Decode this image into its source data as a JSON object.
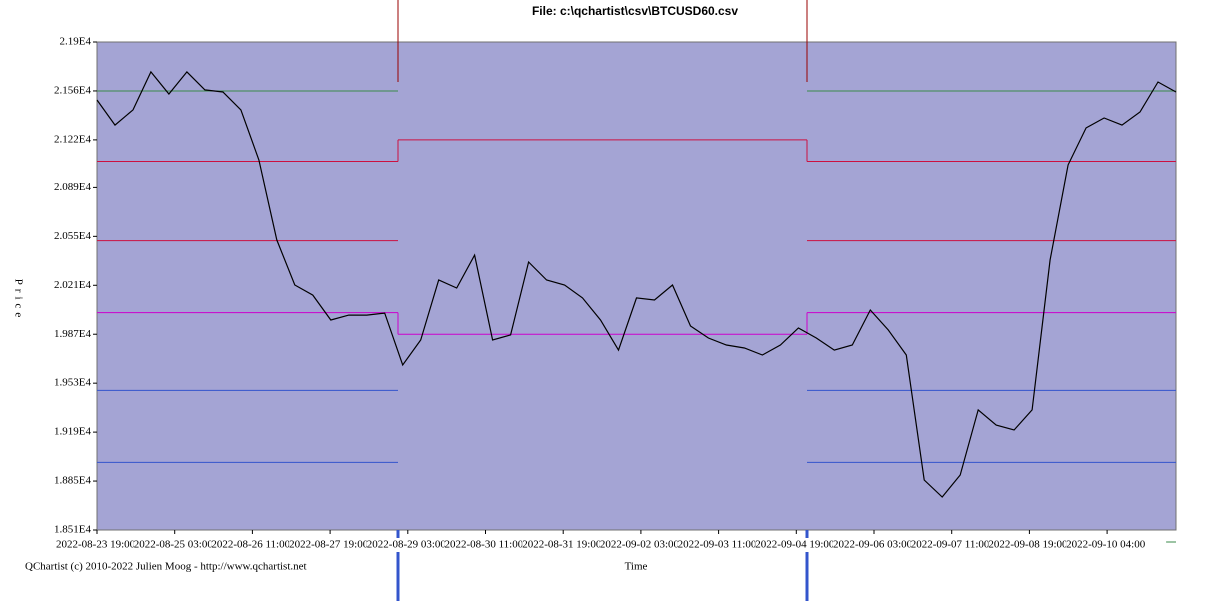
{
  "chart_data": {
    "type": "line",
    "title": "File: c:\\qchartist\\csv\\BTCUSD60.csv",
    "y_label": "Price",
    "x_label": "Time",
    "footer": "QChartist (c) 2010-2022 Julien Moog - http://www.qchartist.net",
    "ylim": [
      18510,
      21900
    ],
    "yticks": [
      {
        "value": 18510,
        "label": "1.851E4"
      },
      {
        "value": 18850,
        "label": "1.885E4"
      },
      {
        "value": 19190,
        "label": "1.919E4"
      },
      {
        "value": 19530,
        "label": "1.953E4"
      },
      {
        "value": 19870,
        "label": "1.987E4"
      },
      {
        "value": 20210,
        "label": "2.021E4"
      },
      {
        "value": 20550,
        "label": "2.055E4"
      },
      {
        "value": 20890,
        "label": "2.089E4"
      },
      {
        "value": 21220,
        "label": "2.122E4"
      },
      {
        "value": 21560,
        "label": "2.156E4"
      },
      {
        "value": 21900,
        "label": "2.19E4"
      }
    ],
    "x_tick_labels": [
      "2022-08-23 19:00",
      "2022-08-25 03:00",
      "2022-08-26 11:00",
      "2022-08-27 19:00",
      "2022-08-29 03:00",
      "2022-08-30 11:00",
      "2022-08-31 19:00",
      "2022-09-02 03:00",
      "2022-09-03 11:00",
      "2022-09-04 19:00",
      "2022-09-06 03:00",
      "2022-09-07 11:00",
      "2022-09-08 19:00",
      "2022-09-10 04:00"
    ],
    "series": [
      {
        "color": "#000000",
        "values": [
          21497,
          21323,
          21428,
          21692,
          21539,
          21692,
          21567,
          21553,
          21428,
          21080,
          20525,
          20212,
          20142,
          19969,
          20003,
          20003,
          20017,
          19656,
          19830,
          20247,
          20191,
          20420,
          19830,
          19865,
          20372,
          20247,
          20212,
          20122,
          19969,
          19760,
          20122,
          20108,
          20212,
          19927,
          19844,
          19795,
          19774,
          19726,
          19795,
          19913,
          19844,
          19760,
          19795,
          20038,
          19899,
          19726,
          18857,
          18739,
          18892,
          19344,
          19239,
          19205,
          19344,
          20386,
          21046,
          21303,
          21372,
          21323,
          21414,
          21622,
          21553
        ]
      }
    ],
    "levels": [
      {
        "color": "#3a8a4a",
        "values": [
          21560,
          null,
          21560
        ]
      },
      {
        "color": "#cc1040",
        "values": [
          21070,
          21220,
          21070
        ]
      },
      {
        "color": "#cc1040",
        "values": [
          20520,
          null,
          20520
        ]
      },
      {
        "color": "#cc00cc",
        "values": [
          20020,
          19870,
          20020
        ]
      },
      {
        "color": "#3355cc",
        "values": [
          19480,
          null,
          19480
        ]
      },
      {
        "color": "#3355cc",
        "values": [
          18980,
          null,
          18980
        ]
      }
    ]
  }
}
